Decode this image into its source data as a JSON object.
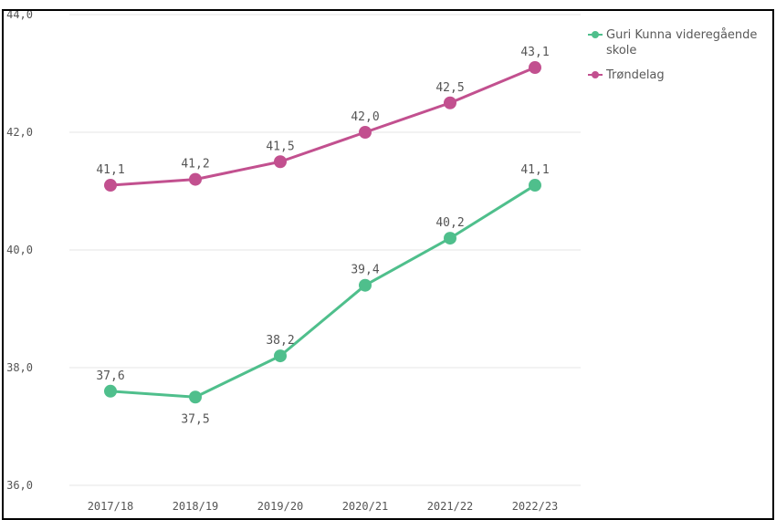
{
  "chart_data": {
    "type": "line",
    "categories": [
      "2017/18",
      "2018/19",
      "2019/20",
      "2020/21",
      "2021/22",
      "2022/23"
    ],
    "series": [
      {
        "name": "Guri Kunna videregående skole",
        "values": [
          37.6,
          37.5,
          38.2,
          39.4,
          40.2,
          41.1
        ],
        "labels": [
          "37,6",
          "37,5",
          "38,2",
          "39,4",
          "40,2",
          "41,1"
        ],
        "color": "#4fbf8c"
      },
      {
        "name": "Trøndelag",
        "values": [
          41.1,
          41.2,
          41.5,
          42.0,
          42.5,
          43.1
        ],
        "labels": [
          "41,1",
          "41,2",
          "41,5",
          "42,0",
          "42,5",
          "43,1"
        ],
        "color": "#c2508f"
      }
    ],
    "y_ticks": [
      {
        "value": 36,
        "label": "36,0"
      },
      {
        "value": 38,
        "label": "38,0"
      },
      {
        "value": 40,
        "label": "40,0"
      },
      {
        "value": 42,
        "label": "42,0"
      },
      {
        "value": 44,
        "label": "44,0"
      }
    ],
    "ylim": [
      36,
      44
    ],
    "grid": true,
    "legend_position": "top-right"
  }
}
